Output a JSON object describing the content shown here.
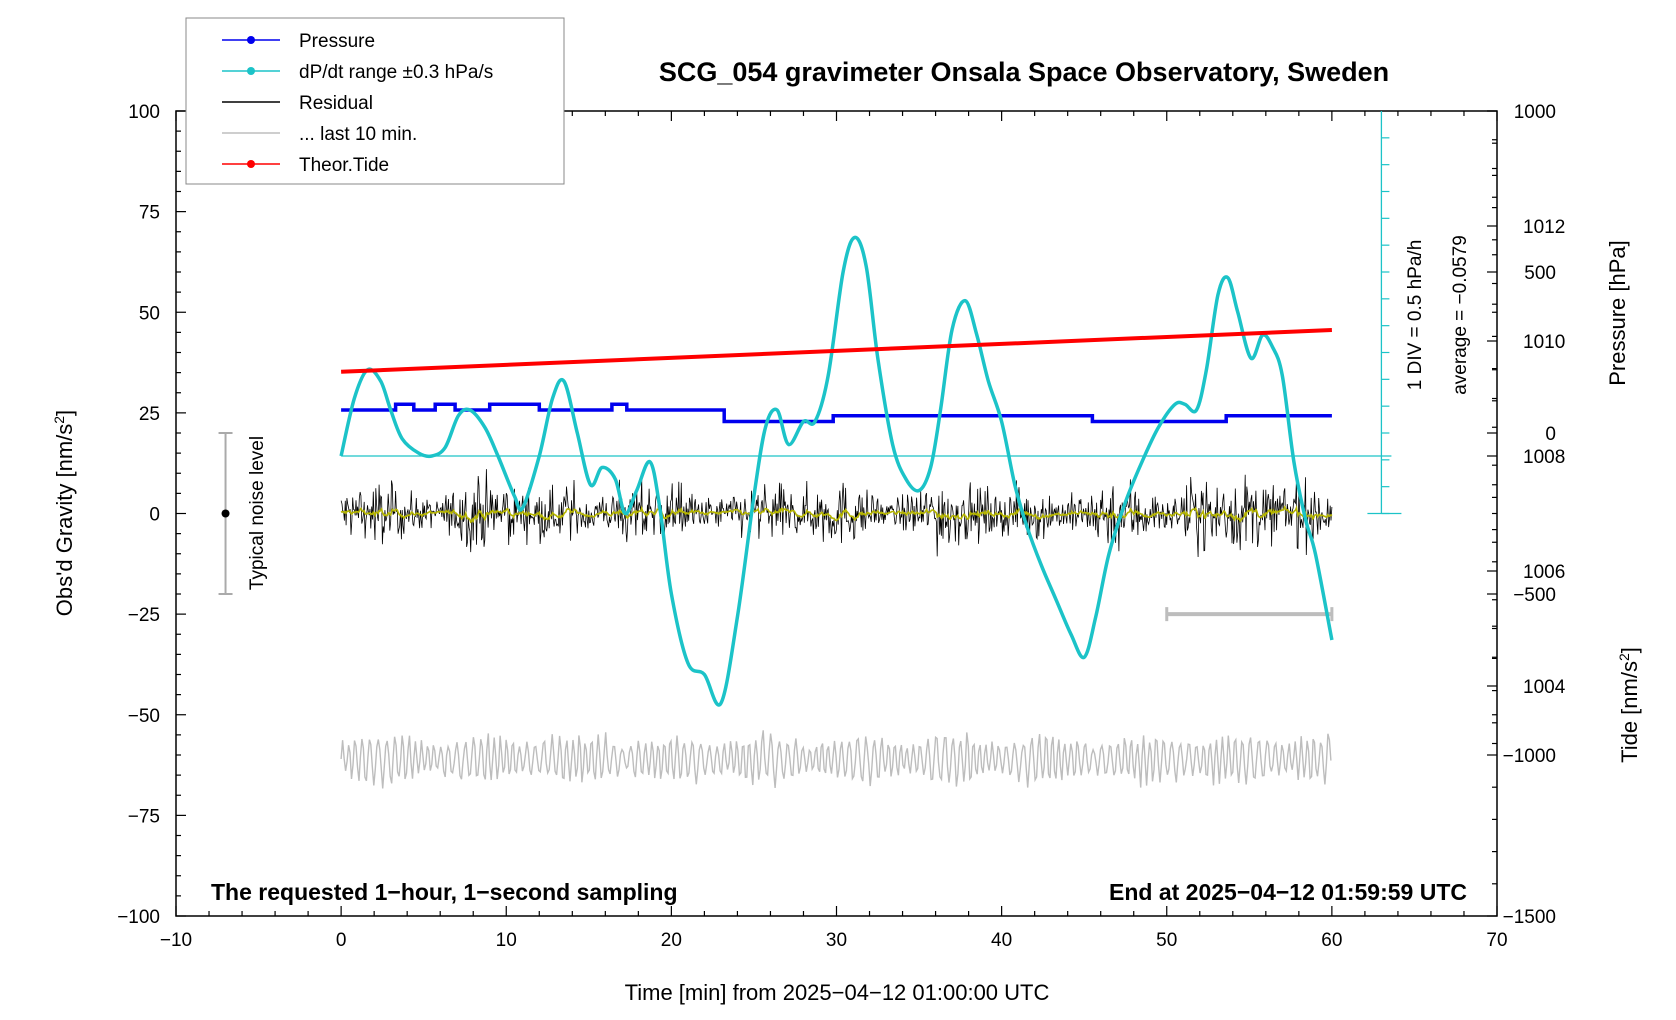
{
  "chart_data": {
    "type": "line",
    "title": "SCG_054 gravimeter Onsala Space Observatory, Sweden",
    "xlabel": "Time [min] from 2025−04−12 01:00:00 UTC",
    "xlim": [
      -10,
      70
    ],
    "x_ticks": [
      "−10",
      "0",
      "10",
      "20",
      "30",
      "40",
      "50",
      "60",
      "70"
    ],
    "left_axis": {
      "label": "Obs'd Gravity [nm/s",
      "label_sup": "2",
      "label_end": "]",
      "ylim": [
        -100,
        100
      ],
      "ticks": [
        "−100",
        "−75",
        "−50",
        "−25",
        "0",
        "25",
        "50",
        "75",
        "100"
      ]
    },
    "pressure_axis": {
      "label": "Pressure [hPa]",
      "ylim": [
        1000,
        1014
      ],
      "ticks": [
        "1004",
        "1006",
        "1008",
        "1010",
        "1012"
      ]
    },
    "tide_axis": {
      "label": "Tide [nm/s",
      "label_sup": "2",
      "label_end": "]",
      "ylim": [
        -1500,
        1000
      ],
      "ticks": [
        "−1500",
        "−1000",
        "−500",
        "0",
        "500",
        "1000"
      ]
    },
    "dpdt_axis": {
      "div_label": "1 DIV = 0.5 hPa/h",
      "average_label": "average = −0.0579"
    },
    "legend": {
      "placement": "top-left",
      "entries": [
        {
          "label": "Pressure",
          "color": "#0000ee",
          "marker": true
        },
        {
          "label": "dP/dt range ±0.3 hPa/s",
          "color": "#1cc3c8",
          "marker": true
        },
        {
          "label": "Residual",
          "color": "#000000",
          "marker": false
        },
        {
          "label": "... last 10 min.",
          "color": "#bdbdbd",
          "marker": false
        },
        {
          "label": "Theor.Tide",
          "color": "#ff0000",
          "marker": true
        }
      ]
    },
    "noise_label": "Typical noise level",
    "noise_range": [
      -20,
      20
    ],
    "noise_x": -7,
    "last10_range": [
      50,
      60
    ],
    "bottom_left_note": "The requested 1−hour, 1−second sampling",
    "bottom_right_note": "End at 2025−04−12 01:59:59 UTC",
    "colors": {
      "pressure": "#0000ee",
      "dpdt": "#1cc3c8",
      "residual": "#000000",
      "smoothed": "#b5b500",
      "tide": "#ff0000",
      "last10": "#bdbdbd"
    },
    "series": [
      {
        "name": "Pressure",
        "axis": "pressure",
        "x": [
          0,
          1.5,
          2.3,
          3.3,
          4.4,
          5.7,
          6.9,
          9,
          10.8,
          12,
          14.2,
          15.2,
          16.2,
          16.4,
          17.3,
          18.9,
          22.4,
          23.2,
          24.5,
          25.7,
          28.2,
          29.8,
          31.1,
          32.5,
          35,
          38,
          40,
          42,
          45.5,
          48,
          50,
          53,
          53.6,
          55,
          57.5,
          60
        ],
        "y": [
          1008.8,
          1008.8,
          1008.8,
          1008.9,
          1008.8,
          1008.9,
          1008.8,
          1008.9,
          1008.9,
          1008.8,
          1008.8,
          1008.8,
          1008.8,
          1008.9,
          1008.8,
          1008.8,
          1008.8,
          1008.6,
          1008.6,
          1008.6,
          1008.6,
          1008.7,
          1008.7,
          1008.7,
          1008.7,
          1008.7,
          1008.7,
          1008.7,
          1008.6,
          1008.6,
          1008.6,
          1008.6,
          1008.7,
          1008.7,
          1008.7,
          1008.7
        ]
      },
      {
        "name": "dP/dt range ±0.3 hPa/s",
        "axis": "pressure",
        "x": [
          0,
          0.8,
          1.6,
          2.4,
          3,
          3.7,
          4.7,
          5.5,
          6.3,
          7.1,
          7.8,
          8.7,
          9.5,
          10.5,
          11,
          12,
          12.8,
          13.5,
          14.3,
          15.1,
          15.8,
          16.6,
          17.2,
          17.9,
          18.7,
          19.3,
          20,
          21,
          22,
          23,
          24,
          25,
          25.7,
          26.4,
          27.1,
          28,
          28.7,
          29.5,
          30.4,
          31.1,
          31.8,
          32.5,
          33.4,
          34.2,
          35,
          35.7,
          36.3,
          37,
          37.8,
          38.5,
          39.2,
          40,
          40.8,
          41.5,
          42.4,
          43.3,
          44.2,
          45,
          45.7,
          46.5,
          47.5,
          48.5,
          49.5,
          50.5,
          51.1,
          51.8,
          52.4,
          53.1,
          53.7,
          54.3,
          55.1,
          55.8,
          56.4,
          57,
          57.7,
          58.4,
          59,
          60
        ],
        "y": [
          1008,
          1009,
          1009.5,
          1009.3,
          1008.8,
          1008.3,
          1008.05,
          1008,
          1008.15,
          1008.7,
          1008.8,
          1008.5,
          1008,
          1007.3,
          1007.1,
          1008,
          1009,
          1009.3,
          1008.4,
          1007.5,
          1007.8,
          1007.6,
          1007,
          1007.4,
          1007.9,
          1007.1,
          1005.6,
          1004.4,
          1004.2,
          1003.7,
          1005.2,
          1007.3,
          1008.5,
          1008.8,
          1008.2,
          1008.6,
          1008.6,
          1009.4,
          1011.2,
          1011.8,
          1011.3,
          1009.7,
          1008.2,
          1007.6,
          1007.4,
          1007.8,
          1008.8,
          1010.2,
          1010.7,
          1010.1,
          1009.3,
          1008.6,
          1007.5,
          1006.8,
          1006.1,
          1005.5,
          1004.9,
          1004.5,
          1005.2,
          1006.3,
          1007.2,
          1007.9,
          1008.5,
          1008.9,
          1008.9,
          1008.8,
          1009.5,
          1010.8,
          1011.1,
          1010.5,
          1009.7,
          1010.1,
          1009.9,
          1009.4,
          1007.9,
          1006.9,
          1006.3,
          1004.8
        ]
      },
      {
        "name": "Theor.Tide",
        "axis": "tide",
        "x": [
          0,
          60
        ],
        "y": [
          190,
          320
        ]
      }
    ]
  }
}
